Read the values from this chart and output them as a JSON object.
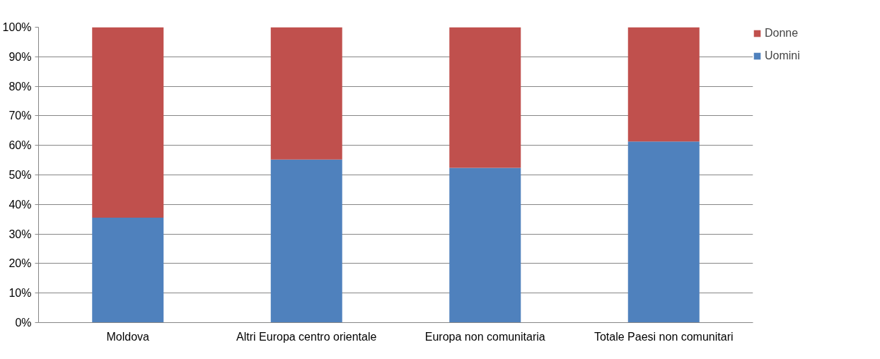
{
  "chart_data": {
    "type": "bar",
    "stacked": true,
    "categories": [
      "Moldova",
      "Altri Europa centro orientale",
      "Europa non comunitaria",
      "Totale Paesi non comunitari"
    ],
    "series": [
      {
        "name": "Uomini",
        "color": "#4f81bd",
        "values": [
          35.5,
          55.2,
          52.4,
          61.3
        ]
      },
      {
        "name": "Donne",
        "color": "#c0504d",
        "values": [
          64.5,
          44.8,
          47.6,
          38.7
        ]
      }
    ],
    "ylim": [
      0,
      100
    ],
    "yticks": [
      {
        "value": 0,
        "label": "0%"
      },
      {
        "value": 10,
        "label": "10%"
      },
      {
        "value": 20,
        "label": "20%"
      },
      {
        "value": 30,
        "label": "30%"
      },
      {
        "value": 40,
        "label": "40%"
      },
      {
        "value": 50,
        "label": "50%"
      },
      {
        "value": 60,
        "label": "60%"
      },
      {
        "value": 70,
        "label": "70%"
      },
      {
        "value": 80,
        "label": "80%"
      },
      {
        "value": 90,
        "label": "90%"
      },
      {
        "value": 100,
        "label": "100%"
      }
    ],
    "grid": "y",
    "legend": "right"
  }
}
